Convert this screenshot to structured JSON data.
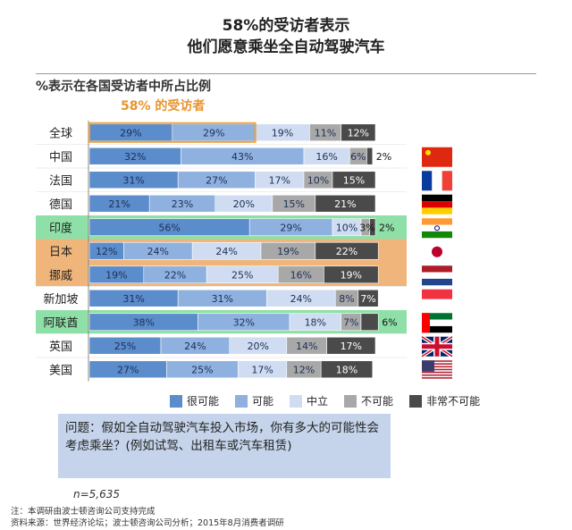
{
  "title_line1": "58%的受访者表示",
  "title_line2": "他们愿意乘坐全自动驾驶汽车",
  "callout": "58% 的受访者",
  "question": "问题：假如全自动驾驶汽车投入市场，你有多大的可能性会考虑乘坐？(例如试驾、出租车或汽车租赁)",
  "sample": "n=5,635",
  "note1": "注：本调研由波士顿咨询公司支持完成",
  "note2": "资料来源：世界经济论坛；波士顿咨询公司分析；2015年8月消费者调研",
  "chart_data": {
    "type": "bar",
    "stacked": true,
    "orientation": "horizontal",
    "title": "%表示在各国受访者中所占比例",
    "categories": [
      "全球",
      "中国",
      "法国",
      "德国",
      "印度",
      "日本",
      "挪威",
      "新加坡",
      "阿联酋",
      "英国",
      "美国"
    ],
    "flags": [
      "",
      "china",
      "france",
      "germany",
      "india",
      "japan",
      "netherlands",
      "singapore",
      "uae",
      "uk",
      "usa"
    ],
    "highlights": [
      "",
      "",
      "",
      "",
      "green",
      "orange",
      "orange",
      "",
      "green",
      "",
      ""
    ],
    "series": [
      {
        "name": "很可能",
        "color": "#5b8ccc",
        "values": [
          29,
          32,
          31,
          21,
          56,
          12,
          19,
          31,
          38,
          25,
          27
        ]
      },
      {
        "name": "可能",
        "color": "#8eb1df",
        "values": [
          29,
          43,
          27,
          23,
          29,
          24,
          22,
          31,
          32,
          24,
          25
        ]
      },
      {
        "name": "中立",
        "color": "#cfdcf1",
        "values": [
          19,
          16,
          17,
          20,
          10,
          24,
          25,
          24,
          18,
          20,
          17
        ]
      },
      {
        "name": "不可能",
        "color": "#a8a8a8",
        "values": [
          11,
          6,
          10,
          15,
          3,
          19,
          16,
          8,
          7,
          14,
          12
        ]
      },
      {
        "name": "非常不可能",
        "color": "#4a4a4a",
        "values": [
          12,
          2,
          15,
          21,
          2,
          22,
          19,
          7,
          6,
          17,
          18
        ]
      }
    ],
    "xlim": [
      0,
      100
    ]
  }
}
